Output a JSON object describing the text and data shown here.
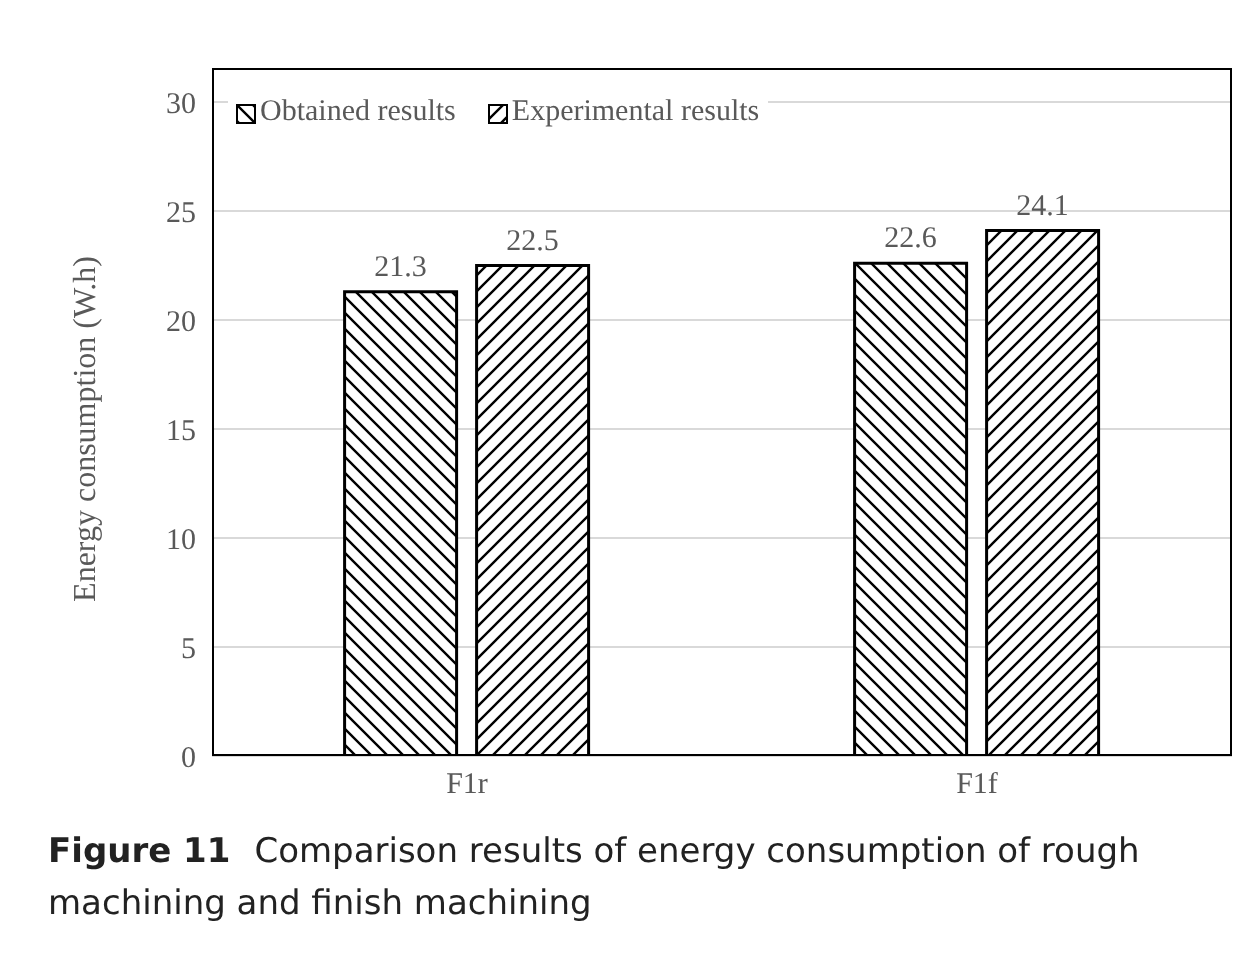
{
  "chart_data": {
    "type": "bar",
    "ylabel": "Energy consumption (W.h)",
    "categories": [
      "F1r",
      "F1f"
    ],
    "series": [
      {
        "name": "Obtained results",
        "color": "#000000",
        "values": [
          21.3,
          22.6
        ]
      },
      {
        "name": "Experimental results",
        "color": "#000000",
        "values": [
          22.5,
          24.1
        ]
      }
    ],
    "ylim": [
      0,
      30
    ],
    "yticks": [
      0,
      5,
      10,
      15,
      20,
      25,
      30
    ],
    "grid": "y",
    "legend": "top left",
    "data_labels": true,
    "annotations": [
      "Figure 11",
      "Comparison results of energy consumption of rough machining and finish machining"
    ]
  }
}
